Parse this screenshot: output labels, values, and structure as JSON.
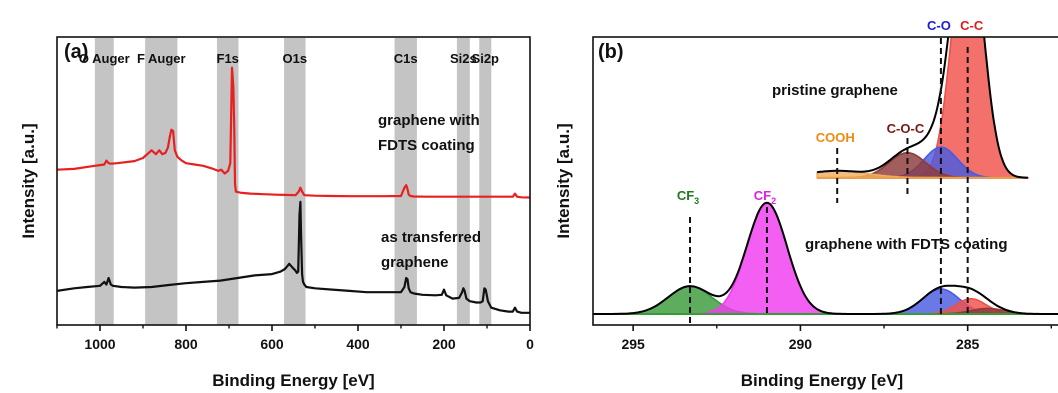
{
  "chart_data": [
    {
      "type": "line",
      "panel_label": "(a)",
      "xlabel": "Binding Energy [eV]",
      "ylabel": "Intensity [a.u.]",
      "xlim": [
        1100,
        0
      ],
      "x_reversed": true,
      "x_ticks": [
        "1000",
        "800",
        "600",
        "400",
        "200",
        "0"
      ],
      "shaded_bands": [
        {
          "label": "O Auger",
          "range": [
            1012,
            968
          ]
        },
        {
          "label": "F Auger",
          "range": [
            895,
            820
          ]
        },
        {
          "label": "F1s",
          "range": [
            728,
            678
          ]
        },
        {
          "label": "O1s",
          "range": [
            572,
            522
          ]
        },
        {
          "label": "C1s",
          "range": [
            315,
            263
          ]
        },
        {
          "label": "Si2s",
          "range": [
            170,
            140
          ]
        },
        {
          "label": "Si2p",
          "range": [
            118,
            90
          ]
        }
      ],
      "annotations": [
        {
          "text": [
            "graphene with",
            "FDTS coating"
          ],
          "series": 0
        },
        {
          "text": [
            "as transferred",
            "graphene"
          ],
          "series": 1
        }
      ],
      "series": [
        {
          "color": "#e8201f",
          "x": [
            1100,
            1060,
            1020,
            990,
            985,
            980,
            975,
            960,
            920,
            900,
            880,
            870,
            862,
            855,
            848,
            842,
            838,
            834,
            830,
            826,
            820,
            810,
            800,
            780,
            760,
            740,
            725,
            718,
            710,
            702,
            697,
            693,
            690,
            688,
            686,
            684,
            680,
            670,
            650,
            620,
            590,
            570,
            545,
            538,
            534,
            530,
            525,
            500,
            460,
            420,
            380,
            340,
            300,
            292,
            288,
            285,
            282,
            278,
            270,
            240,
            210,
            180,
            160,
            150,
            140,
            120,
            110,
            100,
            80,
            60,
            40,
            35,
            30,
            20,
            0
          ],
          "y": [
            0.575,
            0.578,
            0.588,
            0.595,
            0.61,
            0.6,
            0.598,
            0.6,
            0.608,
            0.62,
            0.65,
            0.635,
            0.65,
            0.635,
            0.64,
            0.66,
            0.7,
            0.73,
            0.725,
            0.65,
            0.625,
            0.61,
            0.6,
            0.595,
            0.59,
            0.58,
            0.57,
            0.575,
            0.56,
            0.57,
            0.6,
            0.97,
            0.9,
            0.75,
            0.52,
            0.49,
            0.488,
            0.485,
            0.482,
            0.48,
            0.478,
            0.477,
            0.476,
            0.49,
            0.505,
            0.49,
            0.476,
            0.474,
            0.473,
            0.472,
            0.472,
            0.472,
            0.473,
            0.505,
            0.515,
            0.5,
            0.478,
            0.473,
            0.471,
            0.47,
            0.47,
            0.47,
            0.47,
            0.47,
            0.47,
            0.47,
            0.47,
            0.47,
            0.47,
            0.47,
            0.47,
            0.482,
            0.47,
            0.468,
            0.467
          ]
        },
        {
          "color": "#111111",
          "x": [
            1100,
            1060,
            1030,
            1000,
            990,
            985,
            980,
            975,
            970,
            950,
            920,
            880,
            840,
            800,
            760,
            720,
            680,
            640,
            600,
            580,
            570,
            565,
            560,
            552,
            546,
            542,
            539,
            536,
            534,
            532,
            530,
            528,
            525,
            520,
            500,
            460,
            420,
            380,
            340,
            320,
            300,
            292,
            288,
            285,
            282,
            278,
            270,
            250,
            220,
            205,
            200,
            195,
            180,
            165,
            158,
            155,
            152,
            148,
            140,
            125,
            115,
            110,
            106,
            103,
            98,
            90,
            70,
            50,
            40,
            35,
            30,
            20,
            0
          ],
          "y": [
            0.105,
            0.115,
            0.12,
            0.125,
            0.14,
            0.13,
            0.155,
            0.13,
            0.125,
            0.12,
            0.118,
            0.12,
            0.128,
            0.135,
            0.14,
            0.145,
            0.155,
            0.165,
            0.17,
            0.18,
            0.19,
            0.2,
            0.21,
            0.195,
            0.185,
            0.175,
            0.18,
            0.4,
            0.45,
            0.3,
            0.17,
            0.14,
            0.13,
            0.12,
            0.115,
            0.11,
            0.105,
            0.1,
            0.1,
            0.1,
            0.1,
            0.12,
            0.155,
            0.15,
            0.115,
            0.1,
            0.095,
            0.09,
            0.088,
            0.09,
            0.11,
            0.088,
            0.075,
            0.078,
            0.1,
            0.115,
            0.105,
            0.075,
            0.065,
            0.06,
            0.06,
            0.065,
            0.115,
            0.11,
            0.065,
            0.04,
            0.03,
            0.025,
            0.025,
            0.04,
            0.025,
            0.02,
            0.02
          ]
        }
      ]
    },
    {
      "type": "area",
      "panel_label": "(b)",
      "xlabel": "Binding Energy [eV]",
      "ylabel": "Intensity [a.u.]",
      "xlim": [
        296.2,
        282.3
      ],
      "x_reversed": true,
      "x_ticks": [
        "295",
        "290",
        "285"
      ],
      "spectra": [
        {
          "label": "pristine graphene",
          "baseline": 0.49,
          "envelope_color": "#000000",
          "peaks": [
            {
              "label": "C-C",
              "center": 285.0,
              "height": 0.92,
              "width": 0.45,
              "color": "#f0504a",
              "label_color": "#e41a1c",
              "marker": true
            },
            {
              "label": "C-O",
              "center": 285.8,
              "height": 0.11,
              "width": 0.5,
              "color": "#4b5be0",
              "label_color": "#1c1cd6",
              "marker": true
            },
            {
              "label": "C-O-C",
              "center": 286.8,
              "height": 0.09,
              "width": 0.55,
              "color": "#8e3b3b",
              "label_color": "#7a1717",
              "marker": true
            },
            {
              "label": "COOH",
              "center": 288.9,
              "height": 0.025,
              "width": 0.9,
              "color": "#f0b060",
              "label_color": "#f08a10",
              "marker": true
            }
          ]
        },
        {
          "label": "graphene with FDTS coating",
          "baseline": 0.0,
          "envelope_color": "#000000",
          "peaks": [
            {
              "label": "CF",
              "label_sub": "3",
              "center": 293.3,
              "height": 0.1,
              "width": 0.65,
              "color": "#3a9a3a",
              "label_color": "#1e7a1e",
              "marker": true
            },
            {
              "label": "CF",
              "label_sub": "2",
              "center": 291.0,
              "height": 0.4,
              "width": 0.6,
              "color": "#f03cf0",
              "label_color": "#e020e0",
              "marker": true
            },
            {
              "label": "",
              "center": 285.8,
              "height": 0.09,
              "width": 0.55,
              "color": "#4b5be0",
              "label_color": "#1c1cd6",
              "marker": false
            },
            {
              "label": "",
              "center": 284.9,
              "height": 0.055,
              "width": 0.45,
              "color": "#f0504a",
              "label_color": "#e41a1c",
              "marker": false
            },
            {
              "label": "",
              "center": 284.4,
              "height": 0.02,
              "width": 0.5,
              "color": "#8e3b3b",
              "label_color": "#7a1717",
              "marker": false
            }
          ]
        }
      ]
    }
  ]
}
